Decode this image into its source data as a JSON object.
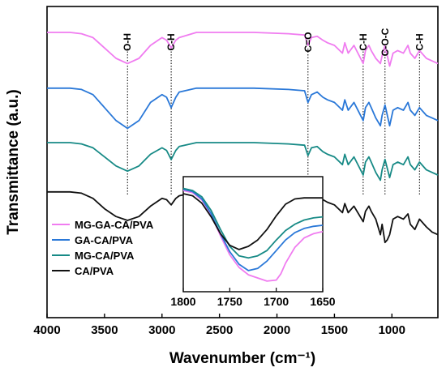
{
  "chart_data": {
    "type": "line",
    "title": "",
    "xlabel": "Wavenumber (cm⁻¹)",
    "ylabel": "Transmittance (a.u.)",
    "xlim": [
      4000,
      600
    ],
    "x_reversed": true,
    "x_ticks": [
      "4000",
      "3500",
      "3000",
      "2500",
      "2000",
      "1500",
      "1000"
    ],
    "x_tick_values": [
      4000,
      3500,
      3000,
      2500,
      2000,
      1500,
      1000
    ],
    "y_ticks_shown": false,
    "ylim": [
      0,
      12
    ],
    "legend_position": "bottom-left",
    "series": [
      {
        "name": "MG-GA-CA/PVA",
        "color": "#f07cf0",
        "points": [
          [
            4000,
            11.0
          ],
          [
            3800,
            11.0
          ],
          [
            3700,
            10.95
          ],
          [
            3600,
            10.8
          ],
          [
            3500,
            10.4
          ],
          [
            3400,
            10.0
          ],
          [
            3300,
            9.8
          ],
          [
            3200,
            10.0
          ],
          [
            3100,
            10.5
          ],
          [
            3000,
            10.8
          ],
          [
            2960,
            10.7
          ],
          [
            2920,
            10.4
          ],
          [
            2880,
            10.7
          ],
          [
            2850,
            10.8
          ],
          [
            2700,
            11.0
          ],
          [
            2500,
            11.0
          ],
          [
            2200,
            11.0
          ],
          [
            1900,
            10.95
          ],
          [
            1760,
            10.9
          ],
          [
            1730,
            10.5
          ],
          [
            1700,
            10.8
          ],
          [
            1650,
            10.85
          ],
          [
            1600,
            10.7
          ],
          [
            1560,
            10.6
          ],
          [
            1500,
            10.5
          ],
          [
            1430,
            10.2
          ],
          [
            1410,
            10.6
          ],
          [
            1380,
            10.2
          ],
          [
            1330,
            10.5
          ],
          [
            1250,
            9.8
          ],
          [
            1230,
            10.3
          ],
          [
            1200,
            10.5
          ],
          [
            1180,
            10.3
          ],
          [
            1140,
            10.0
          ],
          [
            1100,
            9.8
          ],
          [
            1085,
            10.1
          ],
          [
            1060,
            10.5
          ],
          [
            1020,
            9.7
          ],
          [
            990,
            10.2
          ],
          [
            950,
            10.3
          ],
          [
            900,
            10.2
          ],
          [
            860,
            10.5
          ],
          [
            840,
            10.2
          ],
          [
            800,
            10.0
          ],
          [
            760,
            10.3
          ],
          [
            700,
            10.0
          ],
          [
            650,
            9.9
          ],
          [
            600,
            9.8
          ]
        ]
      },
      {
        "name": "GA-CA/PVA",
        "color": "#2a78d8",
        "points": [
          [
            4000,
            8.85
          ],
          [
            3800,
            8.85
          ],
          [
            3700,
            8.8
          ],
          [
            3600,
            8.6
          ],
          [
            3500,
            8.1
          ],
          [
            3400,
            7.6
          ],
          [
            3300,
            7.3
          ],
          [
            3200,
            7.6
          ],
          [
            3100,
            8.3
          ],
          [
            3000,
            8.6
          ],
          [
            2960,
            8.5
          ],
          [
            2920,
            8.1
          ],
          [
            2880,
            8.5
          ],
          [
            2850,
            8.7
          ],
          [
            2700,
            8.85
          ],
          [
            2500,
            8.85
          ],
          [
            2200,
            8.85
          ],
          [
            1900,
            8.8
          ],
          [
            1760,
            8.75
          ],
          [
            1730,
            8.3
          ],
          [
            1700,
            8.6
          ],
          [
            1650,
            8.7
          ],
          [
            1600,
            8.5
          ],
          [
            1560,
            8.4
          ],
          [
            1500,
            8.3
          ],
          [
            1430,
            8.0
          ],
          [
            1410,
            8.4
          ],
          [
            1380,
            8.0
          ],
          [
            1330,
            8.3
          ],
          [
            1250,
            7.6
          ],
          [
            1230,
            8.1
          ],
          [
            1200,
            8.3
          ],
          [
            1180,
            8.1
          ],
          [
            1140,
            7.7
          ],
          [
            1100,
            7.4
          ],
          [
            1085,
            7.8
          ],
          [
            1060,
            8.2
          ],
          [
            1020,
            7.4
          ],
          [
            990,
            8.0
          ],
          [
            950,
            8.1
          ],
          [
            900,
            8.0
          ],
          [
            860,
            8.3
          ],
          [
            840,
            8.0
          ],
          [
            800,
            7.8
          ],
          [
            760,
            8.1
          ],
          [
            700,
            7.8
          ],
          [
            650,
            7.7
          ],
          [
            600,
            7.6
          ]
        ]
      },
      {
        "name": "MG-CA/PVA",
        "color": "#178a86",
        "points": [
          [
            4000,
            6.75
          ],
          [
            3800,
            6.75
          ],
          [
            3700,
            6.7
          ],
          [
            3600,
            6.55
          ],
          [
            3500,
            6.2
          ],
          [
            3400,
            5.85
          ],
          [
            3300,
            5.65
          ],
          [
            3200,
            5.85
          ],
          [
            3100,
            6.3
          ],
          [
            3000,
            6.55
          ],
          [
            2960,
            6.45
          ],
          [
            2920,
            6.1
          ],
          [
            2880,
            6.45
          ],
          [
            2850,
            6.6
          ],
          [
            2700,
            6.75
          ],
          [
            2500,
            6.75
          ],
          [
            2200,
            6.75
          ],
          [
            1900,
            6.7
          ],
          [
            1760,
            6.65
          ],
          [
            1730,
            6.25
          ],
          [
            1700,
            6.55
          ],
          [
            1650,
            6.6
          ],
          [
            1600,
            6.4
          ],
          [
            1560,
            6.3
          ],
          [
            1500,
            6.2
          ],
          [
            1430,
            5.9
          ],
          [
            1410,
            6.3
          ],
          [
            1380,
            5.9
          ],
          [
            1330,
            6.2
          ],
          [
            1250,
            5.5
          ],
          [
            1230,
            6.0
          ],
          [
            1200,
            6.2
          ],
          [
            1180,
            6.0
          ],
          [
            1140,
            5.6
          ],
          [
            1100,
            5.3
          ],
          [
            1085,
            5.7
          ],
          [
            1060,
            6.1
          ],
          [
            1020,
            5.4
          ],
          [
            990,
            5.9
          ],
          [
            950,
            6.0
          ],
          [
            900,
            5.9
          ],
          [
            860,
            6.2
          ],
          [
            840,
            5.9
          ],
          [
            800,
            5.7
          ],
          [
            760,
            6.0
          ],
          [
            700,
            5.7
          ],
          [
            650,
            5.6
          ],
          [
            600,
            5.5
          ]
        ]
      },
      {
        "name": "CA/PVA",
        "color": "#111111",
        "points": [
          [
            4000,
            4.85
          ],
          [
            3800,
            4.85
          ],
          [
            3700,
            4.8
          ],
          [
            3600,
            4.6
          ],
          [
            3500,
            4.2
          ],
          [
            3400,
            3.9
          ],
          [
            3300,
            3.75
          ],
          [
            3200,
            3.9
          ],
          [
            3100,
            4.3
          ],
          [
            3000,
            4.6
          ],
          [
            2960,
            4.55
          ],
          [
            2920,
            4.35
          ],
          [
            2880,
            4.6
          ],
          [
            2850,
            4.7
          ],
          [
            2700,
            4.85
          ],
          [
            2500,
            4.85
          ],
          [
            2200,
            4.85
          ],
          [
            1900,
            4.85
          ],
          [
            1760,
            4.8
          ],
          [
            1730,
            4.5
          ],
          [
            1700,
            4.7
          ],
          [
            1650,
            4.75
          ],
          [
            1600,
            4.55
          ],
          [
            1560,
            4.45
          ],
          [
            1500,
            4.35
          ],
          [
            1430,
            4.05
          ],
          [
            1410,
            4.4
          ],
          [
            1380,
            4.05
          ],
          [
            1330,
            4.3
          ],
          [
            1250,
            3.7
          ],
          [
            1230,
            4.1
          ],
          [
            1200,
            4.3
          ],
          [
            1180,
            4.1
          ],
          [
            1140,
            3.8
          ],
          [
            1100,
            3.2
          ],
          [
            1085,
            3.6
          ],
          [
            1060,
            2.9
          ],
          [
            1040,
            3.0
          ],
          [
            1020,
            3.2
          ],
          [
            990,
            3.8
          ],
          [
            950,
            3.9
          ],
          [
            900,
            3.8
          ],
          [
            860,
            4.0
          ],
          [
            840,
            3.6
          ],
          [
            800,
            3.4
          ],
          [
            760,
            3.8
          ],
          [
            700,
            3.5
          ],
          [
            650,
            3.3
          ],
          [
            600,
            3.2
          ]
        ]
      }
    ],
    "annotations": [
      {
        "text": "O-H",
        "x": 3300
      },
      {
        "text": "C-H",
        "x": 2920
      },
      {
        "text": "C=O",
        "x": 1730
      },
      {
        "text": "C-H",
        "x": 1250
      },
      {
        "text": "C-O-C",
        "x": 1060
      },
      {
        "text": "C-H",
        "x": 760
      }
    ],
    "inset": {
      "type": "line",
      "xlim": [
        1800,
        1650
      ],
      "x_ticks": [
        "1800",
        "1750",
        "1700",
        "1650"
      ],
      "x_tick_values": [
        1800,
        1750,
        1700,
        1650
      ],
      "ylim": [
        0,
        10
      ],
      "series": [
        {
          "name": "MG-GA-CA/PVA",
          "color": "#f07cf0",
          "points": [
            [
              1800,
              9.3
            ],
            [
              1790,
              9.1
            ],
            [
              1780,
              8.4
            ],
            [
              1770,
              7.0
            ],
            [
              1760,
              5.0
            ],
            [
              1750,
              3.2
            ],
            [
              1740,
              2.0
            ],
            [
              1730,
              1.3
            ],
            [
              1720,
              1.0
            ],
            [
              1710,
              0.7
            ],
            [
              1700,
              0.8
            ],
            [
              1695,
              1.4
            ],
            [
              1690,
              2.4
            ],
            [
              1680,
              3.9
            ],
            [
              1670,
              4.8
            ],
            [
              1660,
              5.2
            ],
            [
              1650,
              5.4
            ]
          ]
        },
        {
          "name": "GA-CA/PVA",
          "color": "#2a78d8",
          "points": [
            [
              1800,
              9.4
            ],
            [
              1790,
              9.2
            ],
            [
              1780,
              8.5
            ],
            [
              1770,
              7.1
            ],
            [
              1760,
              5.2
            ],
            [
              1750,
              3.5
            ],
            [
              1740,
              2.3
            ],
            [
              1730,
              1.7
            ],
            [
              1720,
              1.9
            ],
            [
              1710,
              2.6
            ],
            [
              1700,
              3.6
            ],
            [
              1690,
              4.6
            ],
            [
              1680,
              5.3
            ],
            [
              1670,
              5.7
            ],
            [
              1660,
              5.9
            ],
            [
              1650,
              6.0
            ]
          ]
        },
        {
          "name": "MG-CA/PVA",
          "color": "#178a86",
          "points": [
            [
              1800,
              9.5
            ],
            [
              1790,
              9.3
            ],
            [
              1780,
              8.7
            ],
            [
              1770,
              7.4
            ],
            [
              1760,
              5.6
            ],
            [
              1750,
              4.0
            ],
            [
              1740,
              3.1
            ],
            [
              1730,
              2.9
            ],
            [
              1720,
              3.1
            ],
            [
              1710,
              3.6
            ],
            [
              1700,
              4.6
            ],
            [
              1690,
              5.5
            ],
            [
              1680,
              6.1
            ],
            [
              1670,
              6.5
            ],
            [
              1660,
              6.7
            ],
            [
              1650,
              6.8
            ]
          ]
        },
        {
          "name": "CA/PVA",
          "color": "#111111",
          "points": [
            [
              1800,
              9.0
            ],
            [
              1790,
              8.8
            ],
            [
              1780,
              8.1
            ],
            [
              1770,
              6.8
            ],
            [
              1760,
              5.2
            ],
            [
              1750,
              4.1
            ],
            [
              1740,
              3.7
            ],
            [
              1730,
              4.0
            ],
            [
              1720,
              4.6
            ],
            [
              1710,
              5.6
            ],
            [
              1700,
              6.9
            ],
            [
              1690,
              8.0
            ],
            [
              1680,
              8.5
            ],
            [
              1670,
              8.6
            ],
            [
              1660,
              8.6
            ],
            [
              1650,
              8.6
            ]
          ]
        }
      ]
    }
  }
}
